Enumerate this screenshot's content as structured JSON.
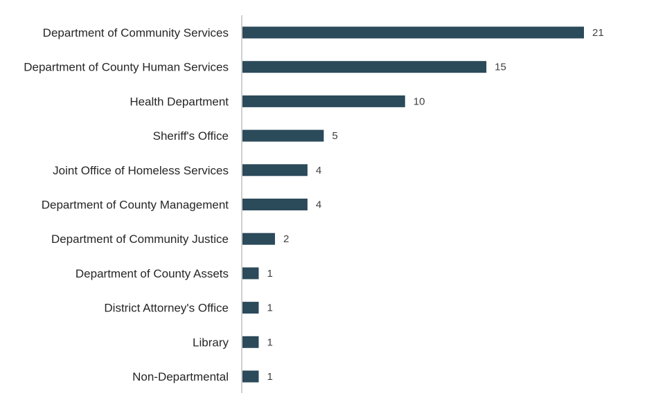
{
  "chart_data": {
    "type": "bar",
    "orientation": "horizontal",
    "title": "",
    "xlabel": "",
    "ylabel": "",
    "categories": [
      "Department of Community Services",
      "Department of County Human Services",
      "Health Department",
      "Sheriff's Office",
      "Joint Office of Homeless Services",
      "Department of County Management",
      "Department of Community Justice",
      "Department of County Assets",
      "District Attorney's Office",
      "Library",
      "Non-Departmental"
    ],
    "values": [
      21,
      15,
      10,
      5,
      4,
      4,
      2,
      1,
      1,
      1,
      1
    ],
    "xlim": [
      0,
      21
    ],
    "grid": false,
    "legend": "none",
    "colors": {
      "bar": "#2b4a5a",
      "axis": "#bfbfbf"
    }
  }
}
